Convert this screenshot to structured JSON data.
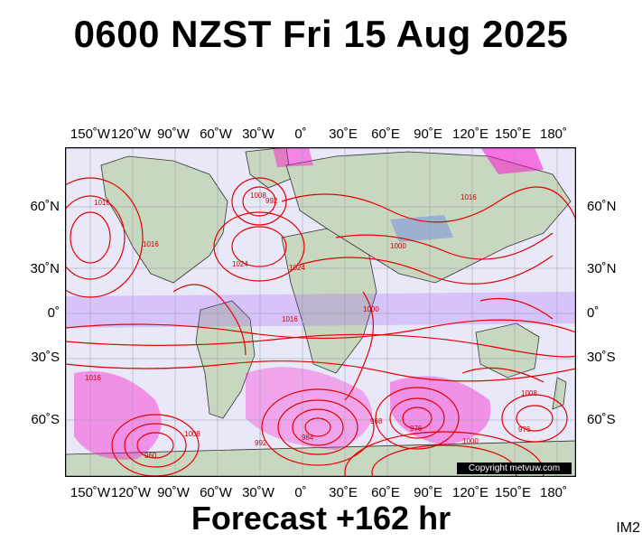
{
  "header": {
    "title": "0600 NZST Fri 15 Aug 2025"
  },
  "footer": {
    "forecast": "Forecast +162 hr",
    "image_code": "IM2"
  },
  "map": {
    "copyright": "Copyright metvuw.com",
    "lon_labels": [
      "150˚W",
      "120˚W",
      "90˚W",
      "60˚W",
      "30˚W",
      "0˚",
      "30˚E",
      "60˚E",
      "90˚E",
      "120˚E",
      "150˚E",
      "180˚"
    ],
    "lat_labels": [
      "60˚N",
      "30˚N",
      "0˚",
      "30˚S",
      "60˚S"
    ],
    "pressure_labels": [
      "1016",
      "1024",
      "1008",
      "1000",
      "1016",
      "1024",
      "1016",
      "1016",
      "984",
      "976",
      "968",
      "992",
      "1008",
      "1000",
      "1008",
      "1000",
      "992",
      "976",
      "960",
      "1016"
    ],
    "colors": {
      "isobar": "#e60000",
      "ocean": "#e8e8f8",
      "land": "#c8d8c0",
      "rain_magenta": "#ff00cc",
      "rain_purple": "#9933ff",
      "rain_blue": "#3355ff"
    }
  }
}
